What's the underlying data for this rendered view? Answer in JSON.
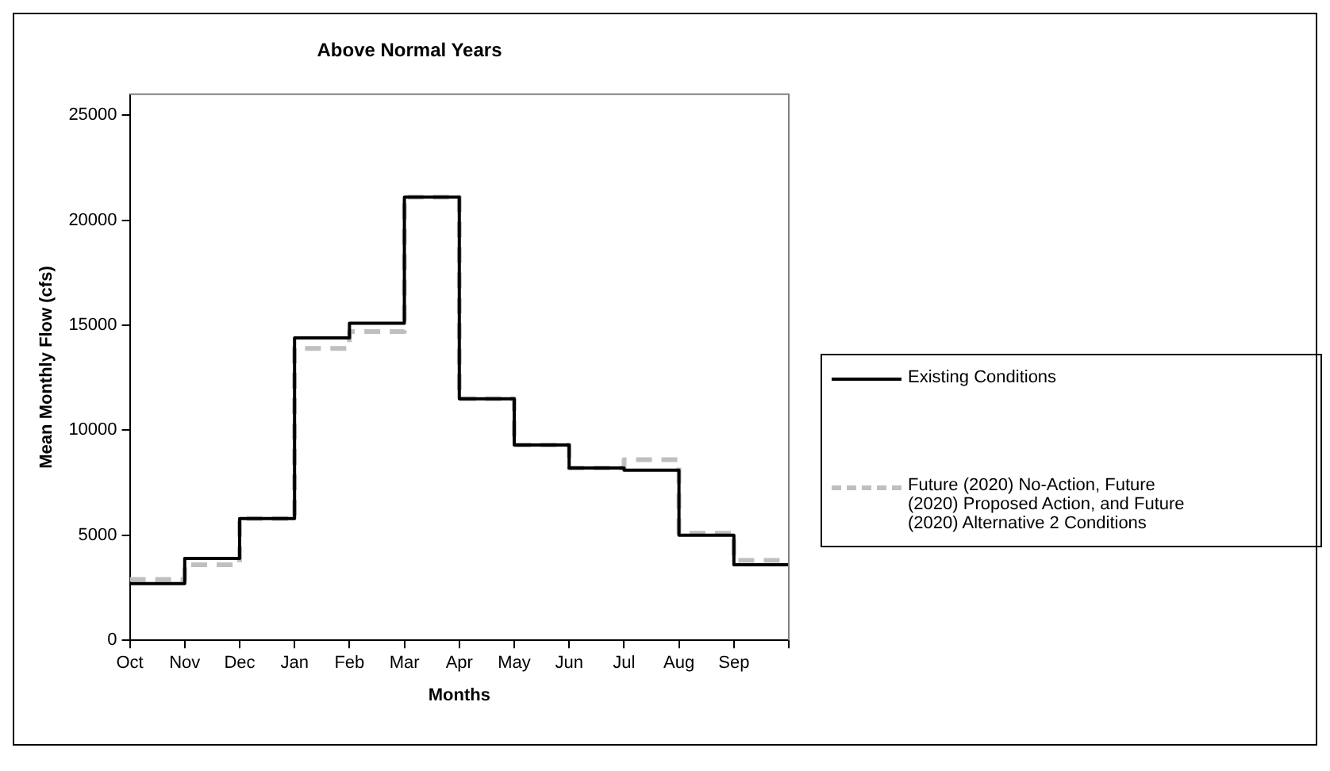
{
  "chart_data": {
    "type": "step",
    "title": "Above Normal Years",
    "xlabel": "Months",
    "ylabel": "Mean Monthly Flow (cfs)",
    "categories": [
      "Oct",
      "Nov",
      "Dec",
      "Jan",
      "Feb",
      "Mar",
      "Apr",
      "May",
      "Jun",
      "Jul",
      "Aug",
      "Sep",
      null
    ],
    "series": [
      {
        "name": "Existing Conditions",
        "color": "#000000",
        "line_style": "solid",
        "values": [
          2700,
          3900,
          5800,
          14400,
          15100,
          21100,
          11500,
          9300,
          8200,
          8100,
          5000,
          3600,
          3600
        ]
      },
      {
        "name": "Future (2020) No-Action, Future (2020) Proposed Action, and Future (2020) Alternative 2 Conditions",
        "color": "#bfbfbf",
        "line_style": "dashed",
        "values": [
          2900,
          3600,
          5800,
          13900,
          14700,
          21100,
          11500,
          9300,
          8200,
          8600,
          5100,
          3800,
          3800
        ]
      }
    ],
    "ylim": [
      0,
      26000
    ],
    "yticks": [
      0,
      5000,
      10000,
      15000,
      20000,
      25000
    ],
    "grid": false,
    "legend": "right",
    "marker": "none"
  }
}
